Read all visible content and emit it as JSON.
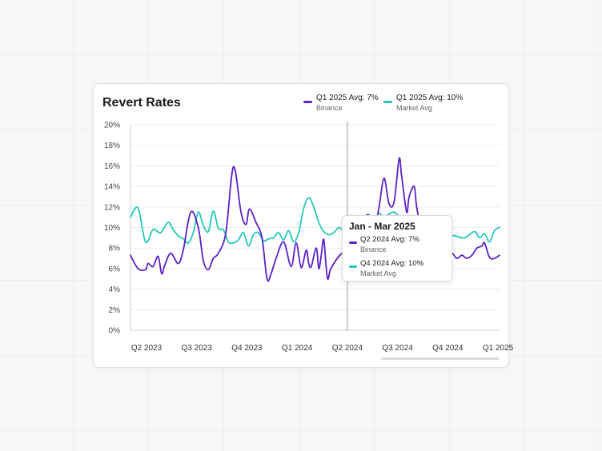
{
  "card": {
    "title": "Revert Rates"
  },
  "legend": [
    {
      "label": "Q1 2025 Avg: 7%",
      "sub": "Binance",
      "color": "#5b21c9"
    },
    {
      "label": "Q1 2025 Avg: 10%",
      "sub": "Market Avg",
      "color": "#22c9bb"
    }
  ],
  "tooltip": {
    "title": "Jan - Mar 2025",
    "rows": [
      {
        "label": "Q2 2024 Avg: 7%",
        "sub": "Binance",
        "color": "#5b21c9"
      },
      {
        "label": "Q4 2024 Avg: 10%",
        "sub": "Market Avg",
        "color": "#22c9bb"
      }
    ]
  },
  "chart_data": {
    "type": "line",
    "title": "Revert Rates",
    "x_ticks": [
      "Q2 2023",
      "Q3 2023",
      "Q4 2023",
      "Q1 2024",
      "Q2 2024",
      "Q3 2024",
      "Q4 2024",
      "Q1 2025"
    ],
    "y_ticks": [
      "0%",
      "2%",
      "4%",
      "6%",
      "8%",
      "10%",
      "12%",
      "14%",
      "16%",
      "18%",
      "20%"
    ],
    "ylim": [
      0,
      20
    ],
    "grid": "horizontal",
    "legend_position": "top-right",
    "crosshair_x": 4.0,
    "x_range": [
      0,
      7.35
    ],
    "series": [
      {
        "name": "Binance",
        "color": "#5b21c9",
        "x": [
          0,
          0.15,
          0.3,
          0.35,
          0.45,
          0.55,
          0.62,
          0.68,
          0.8,
          0.95,
          1.05,
          1.2,
          1.35,
          1.45,
          1.55,
          1.65,
          1.75,
          1.9,
          2.05,
          2.2,
          2.3,
          2.37,
          2.5,
          2.62,
          2.72,
          2.8,
          2.9,
          3.05,
          3.2,
          3.3,
          3.4,
          3.5,
          3.55,
          3.6,
          3.7,
          3.75,
          3.8,
          3.85,
          3.92,
          3.98,
          4.05,
          4.15,
          4.3,
          4.45,
          4.55,
          4.65,
          4.75,
          4.85,
          4.95,
          5.05,
          5.15,
          5.25,
          5.35,
          5.4,
          5.5,
          5.55,
          5.65,
          5.7,
          5.8,
          5.9,
          6.0,
          6.1,
          6.2,
          6.3,
          6.4,
          6.5,
          6.6,
          6.7,
          6.8,
          6.9,
          7.0,
          7.05,
          7.15,
          7.25,
          7.35
        ],
        "y": [
          7.3,
          6.0,
          5.9,
          6.5,
          6.2,
          7.2,
          5.5,
          6.3,
          7.5,
          6.5,
          7.8,
          11.5,
          10.0,
          6.8,
          5.9,
          7.0,
          7.5,
          9.5,
          15.9,
          11.5,
          10.3,
          11.8,
          10.5,
          9.0,
          5.0,
          5.5,
          7.0,
          8.6,
          6.2,
          8.5,
          6.1,
          7.8,
          6.5,
          6.2,
          8.0,
          6.0,
          7.3,
          8.8,
          5.1,
          5.9,
          6.5,
          7.2,
          8.0,
          9.5,
          10.0,
          10.8,
          11.2,
          9.5,
          12.0,
          14.8,
          12.3,
          12.5,
          16.7,
          15.0,
          11.5,
          13.0,
          14.0,
          12.0,
          9.5,
          8.0,
          7.5,
          7.0,
          7.2,
          7.0,
          7.5,
          7.0,
          7.3,
          7.0,
          7.3,
          8.0,
          8.2,
          8.5,
          7.1,
          7.0,
          7.3
        ]
      },
      {
        "name": "Market Avg",
        "color": "#22c9bb",
        "x": [
          0,
          0.15,
          0.3,
          0.45,
          0.6,
          0.75,
          0.85,
          0.95,
          1.05,
          1.15,
          1.25,
          1.35,
          1.45,
          1.55,
          1.65,
          1.75,
          1.85,
          1.95,
          2.05,
          2.15,
          2.25,
          2.35,
          2.45,
          2.55,
          2.65,
          2.75,
          2.85,
          2.95,
          3.05,
          3.15,
          3.25,
          3.35,
          3.45,
          3.55,
          3.65,
          3.75,
          3.85,
          3.95,
          4.05,
          4.15,
          4.25,
          4.35,
          4.45,
          4.55,
          4.65,
          4.75,
          4.85,
          4.95,
          5.05,
          5.25,
          5.45,
          5.65,
          5.85,
          6.05,
          6.25,
          6.45,
          6.65,
          6.85,
          6.95,
          7.05,
          7.15,
          7.25,
          7.35
        ],
        "y": [
          11.0,
          11.9,
          8.6,
          9.8,
          9.5,
          10.5,
          9.8,
          9.2,
          8.9,
          8.5,
          9.5,
          11.5,
          10.2,
          9.6,
          11.6,
          9.9,
          9.8,
          8.6,
          8.5,
          8.8,
          9.5,
          8.2,
          9.3,
          9.5,
          8.7,
          8.9,
          9.0,
          9.5,
          8.8,
          9.7,
          8.6,
          9.5,
          11.9,
          12.9,
          12.0,
          10.5,
          9.6,
          9.3,
          9.5,
          10.0,
          9.6,
          9.0,
          9.3,
          10.2,
          11.0,
          11.2,
          10.8,
          11.4,
          11.0,
          11.5,
          10.5,
          11.0,
          10.2,
          9.8,
          9.3,
          9.2,
          9.0,
          9.6,
          9.0,
          9.4,
          8.6,
          9.7,
          10.0
        ]
      }
    ],
    "tooltip_points": [
      {
        "series": "Binance",
        "x": 4.0,
        "y": 6.3
      },
      {
        "series": "Market Avg",
        "x": 4.0,
        "y": 9.6
      }
    ]
  }
}
